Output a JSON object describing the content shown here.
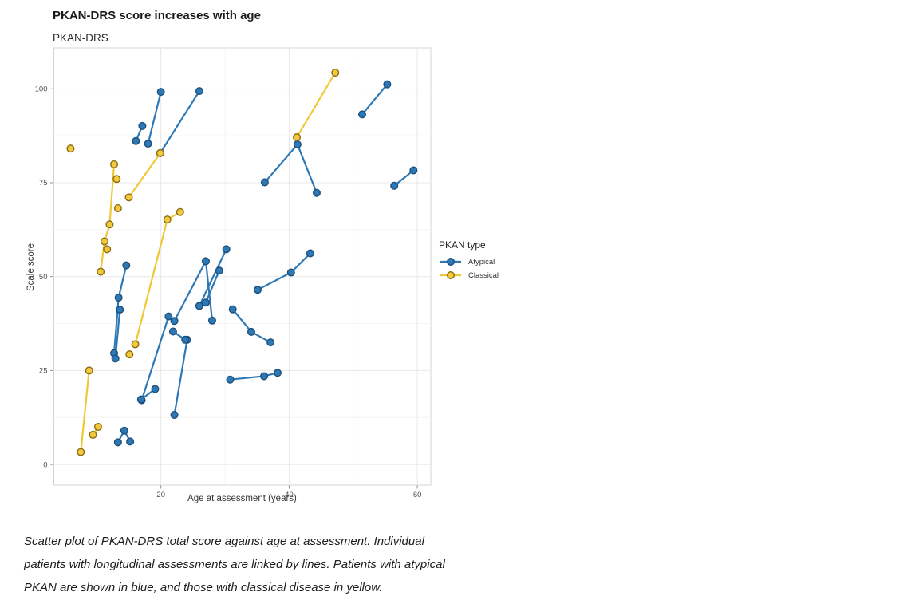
{
  "header": {
    "title": "PKAN-DRS score increases with age",
    "subtitle": "PKAN-DRS"
  },
  "caption": {
    "lines": [
      "Scatter plot of PKAN-DRS total score against age at assessment. Individual",
      "patients with longitudinal assessments are linked by lines. Patients with atypical",
      "PKAN are shown in blue, and those with classical disease in yellow."
    ]
  },
  "chart_data": {
    "type": "scatter",
    "title": "PKAN-DRS score increases with age",
    "subtitle": "PKAN-DRS",
    "xlabel": "Age at assessment (years)",
    "ylabel": "Scale score",
    "xlim": [
      3.3,
      62.1
    ],
    "ylim": [
      -5.5,
      110.9
    ],
    "xticks": [
      20,
      40,
      60
    ],
    "yticks": [
      0,
      25,
      50,
      75,
      100
    ],
    "x_minor_ticks": [
      10,
      30,
      50
    ],
    "y_minor_ticks": [
      12.5,
      37.5,
      62.5,
      87.5
    ],
    "grid": "on",
    "legend_position": "right",
    "legend": {
      "title": "PKAN type",
      "entries": [
        {
          "label": "Atypical",
          "color": "#2E79B5"
        },
        {
          "label": "Classical",
          "color": "#EFC935"
        }
      ]
    },
    "colors": {
      "atypical_fill": "#2E79B5",
      "atypical_stroke": "#1C4F7C",
      "atypical_line": "#2E79B5",
      "classical_fill": "#F1C93B",
      "classical_stroke": "#8A6D15",
      "classical_line": "#EFC935",
      "grid_major": "#e8e8e8",
      "grid_minor": "#f4f4f4",
      "panel_border": "#d4d4d4",
      "tick_mark": "#8c8c8c",
      "tick_text": "#4d4d4d"
    },
    "series": [
      {
        "name": "Atypical",
        "patients": [
          [
            [
              16.1,
              86.1
            ],
            [
              17.1,
              90.1
            ]
          ],
          [
            [
              18.0,
              85.4
            ],
            [
              20.0,
              99.2
            ]
          ],
          [
            [
              19.9,
              82.9
            ],
            [
              26.0,
              99.4
            ]
          ],
          [
            [
              36.2,
              75.1
            ],
            [
              41.3,
              85.2
            ],
            [
              44.3,
              72.3
            ]
          ],
          [
            [
              51.4,
              93.2
            ],
            [
              55.3,
              101.2
            ]
          ],
          [
            [
              56.4,
              74.2
            ],
            [
              59.4,
              78.3
            ]
          ],
          [
            [
              35.1,
              46.5
            ],
            [
              40.3,
              51.1
            ],
            [
              43.3,
              56.2
            ]
          ],
          [
            [
              26.0,
              42.2
            ],
            [
              30.2,
              57.3
            ]
          ],
          [
            [
              27.0,
              43.1
            ],
            [
              29.1,
              51.6
            ]
          ],
          [
            [
              22.1,
              38.2
            ],
            [
              27.0,
              54.1
            ],
            [
              28.0,
              38.3
            ]
          ],
          [
            [
              31.2,
              41.3
            ],
            [
              34.1,
              35.3
            ],
            [
              37.1,
              32.5
            ]
          ],
          [
            [
              30.8,
              22.6
            ],
            [
              36.1,
              23.5
            ],
            [
              38.2,
              24.4
            ]
          ],
          [
            [
              22.1,
              13.2
            ],
            [
              24.1,
              33.2
            ]
          ],
          [
            [
              21.9,
              35.4
            ],
            [
              23.8,
              33.2
            ]
          ],
          [
            [
              17.0,
              17.1
            ],
            [
              21.2,
              39.4
            ]
          ],
          [
            [
              16.9,
              17.3
            ],
            [
              19.1,
              20.1
            ]
          ],
          [
            [
              12.7,
              29.6
            ],
            [
              13.4,
              44.4
            ],
            [
              14.6,
              53.0
            ]
          ],
          [
            [
              12.9,
              28.2
            ],
            [
              13.6,
              41.2
            ]
          ],
          [
            [
              13.3,
              5.9
            ],
            [
              14.3,
              9.0
            ],
            [
              15.2,
              6.1
            ]
          ]
        ]
      },
      {
        "name": "Classical",
        "patients": [
          [
            [
              5.9,
              84.1
            ]
          ],
          [
            [
              10.6,
              51.3
            ],
            [
              11.2,
              59.4
            ],
            [
              12.0,
              63.9
            ],
            [
              12.7,
              79.9
            ]
          ],
          [
            [
              13.1,
              76.0
            ]
          ],
          [
            [
              13.3,
              68.2
            ]
          ],
          [
            [
              11.6,
              57.3
            ]
          ],
          [
            [
              15.0,
              71.1
            ],
            [
              19.9,
              82.9
            ]
          ],
          [
            [
              16.0,
              32.0
            ],
            [
              21.0,
              65.2
            ],
            [
              23.0,
              67.2
            ]
          ],
          [
            [
              7.5,
              3.3
            ],
            [
              8.8,
              25.0
            ]
          ],
          [
            [
              9.4,
              7.9
            ],
            [
              10.2,
              10.0
            ]
          ],
          [
            [
              15.1,
              29.3
            ]
          ],
          [
            [
              41.2,
              87.1
            ],
            [
              47.2,
              104.3
            ]
          ]
        ]
      }
    ]
  }
}
